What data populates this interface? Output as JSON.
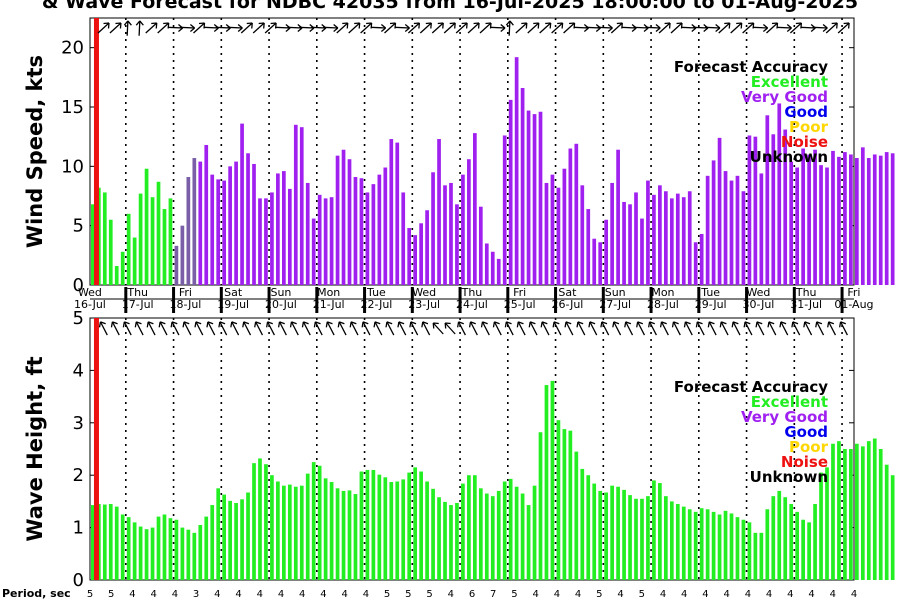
{
  "title": "& Wave Forecast for NDBC 42035 from 16-Jul-2025 18:00:00 to 01-Aug-2025",
  "legend": {
    "title": "Forecast Accuracy",
    "items": [
      {
        "label": "Excellent",
        "color": "#22ee22"
      },
      {
        "label": "Very Good",
        "color": "#a020f0"
      },
      {
        "label": "Good",
        "color": "#0000ee"
      },
      {
        "label": "Poor",
        "color": "#ffd700"
      },
      {
        "label": "Noise",
        "color": "#ee1111"
      },
      {
        "label": "Unknown",
        "color": "#000000"
      }
    ]
  },
  "days": [
    {
      "dow": "Wed",
      "date": "16-Jul"
    },
    {
      "dow": "Thu",
      "date": "17-Jul"
    },
    {
      "dow": "Fri",
      "date": "18-Jul"
    },
    {
      "dow": "Sat",
      "date": "19-Jul"
    },
    {
      "dow": "Sun",
      "date": "20-Jul"
    },
    {
      "dow": "Mon",
      "date": "21-Jul"
    },
    {
      "dow": "Tue",
      "date": "22-Jul"
    },
    {
      "dow": "Wed",
      "date": "23-Jul"
    },
    {
      "dow": "Thu",
      "date": "24-Jul"
    },
    {
      "dow": "Fri",
      "date": "25-Jul"
    },
    {
      "dow": "Sat",
      "date": "26-Jul"
    },
    {
      "dow": "Sun",
      "date": "27-Jul"
    },
    {
      "dow": "Mon",
      "date": "28-Jul"
    },
    {
      "dow": "Tue",
      "date": "29-Jul"
    },
    {
      "dow": "Wed",
      "date": "30-Jul"
    },
    {
      "dow": "Thu",
      "date": "31-Jul"
    },
    {
      "dow": "Fri",
      "date": "01-Aug"
    }
  ],
  "period": {
    "label": "Period, sec",
    "values": [
      5,
      5,
      4,
      4,
      4,
      3,
      4,
      4,
      4,
      4,
      4,
      4,
      4,
      4,
      5,
      5,
      5,
      4,
      6,
      7,
      5,
      4,
      4,
      4,
      5,
      4,
      5,
      4,
      4,
      4,
      4,
      4,
      4,
      4,
      4,
      4,
      4
    ]
  },
  "chart_data": [
    {
      "type": "bar",
      "name": "wind",
      "ylabel": "Wind Speed, kts",
      "ylim": [
        0,
        22.5
      ],
      "yticks": [
        0,
        5,
        10,
        15,
        20
      ],
      "x_range_days": [
        0,
        16
      ],
      "now_marker_days": 0.125,
      "bar_step_days": 0.125,
      "values": [
        6.8,
        8.2,
        7.8,
        5.5,
        1.6,
        2.8,
        6,
        4,
        7.7,
        9.8,
        7.4,
        8.7,
        6.4,
        7.3,
        3.3,
        5,
        9.1,
        10.7,
        10.4,
        11.8,
        9.3,
        8.9,
        8.8,
        10,
        10.4,
        13.6,
        11.1,
        10.2,
        7.3,
        7.3,
        7.8,
        9.4,
        9.6,
        8.1,
        13.5,
        13.3,
        8.6,
        5.6,
        7.6,
        7.3,
        7.4,
        10.9,
        11.4,
        10.6,
        9.1,
        9,
        7.8,
        8.5,
        9.3,
        9.9,
        12.3,
        12,
        7.8,
        4.8,
        4.2,
        5.2,
        6.3,
        9.5,
        12.3,
        8.4,
        8.6,
        6.8,
        9.3,
        10.6,
        12.8,
        6.6,
        3.5,
        2.8,
        2.2,
        12.6,
        15.6,
        19.2,
        16.6,
        14.7,
        14.4,
        14.6,
        8.6,
        9.3,
        8.2,
        9.8,
        11.5,
        11.9,
        8.4,
        6.4,
        3.9,
        3.6,
        5.5,
        8.6,
        11.4,
        7,
        6.8,
        7.8,
        5.6,
        8.8,
        7.6,
        8.4,
        7.9,
        7.3,
        7.7,
        7.4,
        7.9,
        3.6,
        4.3,
        9.2,
        10.5,
        12.4,
        9.6,
        8.8,
        9.2,
        7.9,
        12.6,
        12.5,
        9.4,
        14.3,
        12.7,
        15.3,
        13.1,
        10.4,
        9.9,
        11.5,
        11,
        11.4,
        10.1,
        9.9,
        11.3,
        10.8,
        11.2,
        11,
        10.7,
        11.6,
        10.7,
        11,
        10.9,
        11.2,
        11.1
      ],
      "color_categories_by_bar": "first 14 Excellent, 15-18 Good, rest Very Good",
      "directions_deg": [
        45,
        45,
        0,
        0,
        45,
        45,
        90,
        90,
        45,
        90,
        90,
        90,
        45,
        45,
        45,
        90,
        90,
        90,
        90,
        90,
        45,
        45,
        45,
        90,
        45,
        90,
        45,
        45,
        45,
        45,
        45,
        45,
        45,
        90,
        0,
        45,
        45,
        45,
        45,
        45,
        90,
        90,
        90,
        45,
        90,
        90,
        90,
        45,
        45,
        90,
        90,
        90,
        45,
        45,
        45,
        90,
        45,
        90,
        45,
        90,
        90,
        45,
        45,
        45,
        45,
        45,
        45,
        45,
        45,
        90,
        45,
        45
      ]
    },
    {
      "type": "bar",
      "name": "wave",
      "ylabel": "Wave Height, ft",
      "ylim": [
        0,
        5
      ],
      "yticks": [
        0,
        1,
        2,
        3,
        4,
        5
      ],
      "x_range_days": [
        0,
        16
      ],
      "now_marker_days": 0.125,
      "bar_step_days": 0.125,
      "values": [
        1.43,
        1.45,
        1.44,
        1.45,
        1.4,
        1.25,
        1.2,
        1.1,
        1.02,
        0.97,
        1.0,
        1.21,
        1.25,
        1.18,
        1.15,
        1.0,
        0.96,
        0.9,
        1.05,
        1.21,
        1.43,
        1.75,
        1.63,
        1.51,
        1.47,
        1.54,
        1.67,
        2.23,
        2.32,
        2.21,
        2.0,
        1.88,
        1.8,
        1.82,
        1.78,
        1.8,
        2.03,
        2.25,
        2.18,
        1.94,
        1.87,
        1.75,
        1.7,
        1.71,
        1.64,
        2.07,
        2.1,
        2.1,
        2.01,
        1.96,
        1.87,
        1.88,
        1.92,
        2.05,
        2.15,
        2.07,
        1.88,
        1.74,
        1.58,
        1.49,
        1.43,
        1.47,
        1.84,
        2.0,
        2.0,
        1.75,
        1.65,
        1.6,
        1.7,
        1.88,
        1.93,
        1.78,
        1.65,
        1.43,
        1.8,
        2.82,
        3.72,
        3.8,
        3.05,
        2.88,
        2.85,
        2.45,
        2.12,
        2.0,
        1.84,
        1.7,
        1.67,
        1.8,
        1.78,
        1.72,
        1.62,
        1.55,
        1.55,
        1.6,
        1.9,
        1.85,
        1.6,
        1.5,
        1.45,
        1.4,
        1.35,
        1.3,
        1.37,
        1.35,
        1.3,
        1.25,
        1.32,
        1.27,
        1.2,
        1.15,
        1.1,
        0.9,
        0.9,
        1.35,
        1.6,
        1.7,
        1.58,
        1.45,
        1.3,
        1.15,
        1.1,
        1.45,
        2.05,
        2.15,
        2.6,
        2.65,
        2.5,
        2.5,
        2.6,
        2.55,
        2.65,
        2.7,
        2.5,
        2.2,
        2.0
      ],
      "color_categories_by_bar": "all Excellent",
      "directions_deg": [
        330,
        330,
        330,
        330,
        330,
        330,
        330,
        330,
        330,
        330,
        330,
        330,
        330,
        330,
        330,
        330,
        330,
        330,
        330,
        330,
        330,
        330,
        330,
        330,
        330,
        330,
        330,
        330,
        315,
        315,
        330,
        330,
        330,
        330,
        330,
        330,
        330,
        330,
        330,
        330,
        330,
        330,
        330,
        330,
        330,
        330,
        330,
        330,
        330,
        330,
        330,
        330,
        330,
        330,
        330,
        330,
        330,
        330,
        330,
        330,
        330,
        330,
        330,
        330,
        330,
        330,
        330,
        330,
        330,
        330,
        330,
        330
      ]
    }
  ]
}
